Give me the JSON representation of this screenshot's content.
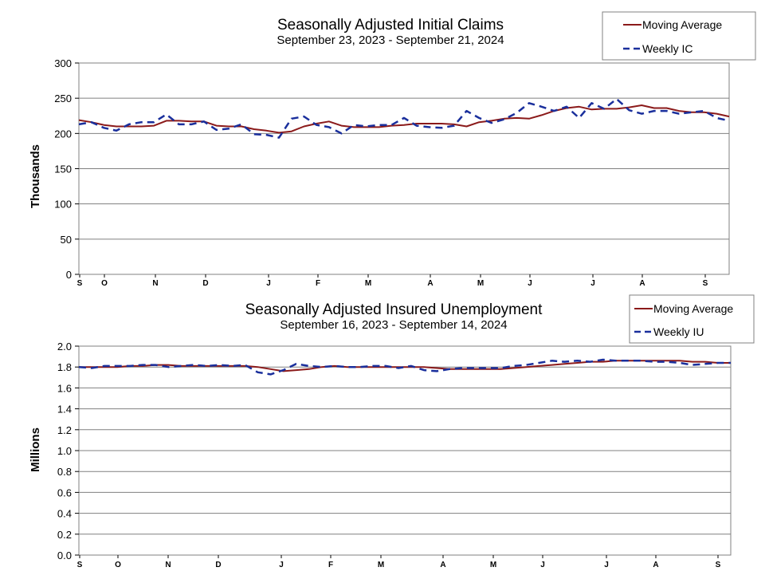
{
  "colors": {
    "moving_average": "#8b1a1a",
    "weekly": "#1a2f9c",
    "grid": "#808080"
  },
  "chart_data": [
    {
      "type": "line",
      "title": "Seasonally Adjusted Initial Claims",
      "subtitle": "September 23, 2023 - September 21, 2024",
      "ylabel": "Thousands",
      "ylim": [
        0,
        300
      ],
      "yticks": [
        "300",
        "250",
        "200",
        "150",
        "100",
        "50",
        "0"
      ],
      "xtick_labels": [
        "S",
        "O",
        "N",
        "D",
        "J",
        "F",
        "M",
        "A",
        "M",
        "J",
        "J",
        "A",
        "S"
      ],
      "legend_position": "top-right",
      "series": [
        {
          "name": "Moving Average",
          "values": [
            219,
            216,
            212,
            210,
            210,
            210,
            211,
            218,
            218,
            217,
            217,
            211,
            210,
            210,
            206,
            204,
            201,
            203,
            210,
            214,
            217,
            211,
            209,
            209,
            209,
            211,
            212,
            214,
            214,
            214,
            213,
            210,
            216,
            218,
            221,
            222,
            221,
            226,
            232,
            236,
            238,
            234,
            235,
            235,
            237,
            240,
            236,
            236,
            232,
            230,
            230,
            228,
            224
          ]
        },
        {
          "name": "Weekly IC",
          "values": [
            213,
            216,
            208,
            204,
            213,
            216,
            216,
            227,
            213,
            213,
            217,
            205,
            207,
            213,
            199,
            198,
            194,
            221,
            224,
            212,
            209,
            200,
            212,
            210,
            212,
            212,
            222,
            211,
            209,
            208,
            211,
            232,
            222,
            215,
            220,
            229,
            243,
            238,
            232,
            238,
            222,
            243,
            235,
            249,
            233,
            228,
            232,
            232,
            228,
            230,
            232,
            222,
            218
          ]
        }
      ]
    },
    {
      "type": "line",
      "title": "Seasonally Adjusted Insured Unemployment",
      "subtitle": "September 16, 2023 - September 14, 2024",
      "ylabel": "Millions",
      "ylim": [
        0,
        2
      ],
      "yticks": [
        "2.0",
        "1.8",
        "1.6",
        "1.4",
        "1.2",
        "1.0",
        "0.8",
        "0.6",
        "0.4",
        "0.2",
        "0.0"
      ],
      "xtick_labels": [
        "S",
        "O",
        "N",
        "D",
        "J",
        "F",
        "M",
        "A",
        "M",
        "J",
        "J",
        "A",
        "S"
      ],
      "legend_position": "top-right",
      "series": [
        {
          "name": "Moving Average",
          "values": [
            1.8,
            1.8,
            1.8,
            1.8,
            1.81,
            1.81,
            1.82,
            1.82,
            1.81,
            1.81,
            1.81,
            1.81,
            1.81,
            1.81,
            1.8,
            1.78,
            1.76,
            1.77,
            1.78,
            1.8,
            1.81,
            1.8,
            1.8,
            1.8,
            1.8,
            1.8,
            1.8,
            1.8,
            1.79,
            1.78,
            1.78,
            1.78,
            1.78,
            1.78,
            1.79,
            1.8,
            1.81,
            1.82,
            1.83,
            1.84,
            1.85,
            1.85,
            1.86,
            1.86,
            1.86,
            1.86,
            1.86,
            1.86,
            1.85,
            1.85,
            1.84,
            1.84
          ]
        },
        {
          "name": "Weekly IU",
          "values": [
            1.8,
            1.79,
            1.81,
            1.81,
            1.81,
            1.82,
            1.82,
            1.8,
            1.81,
            1.82,
            1.81,
            1.82,
            1.81,
            1.82,
            1.75,
            1.73,
            1.77,
            1.83,
            1.81,
            1.8,
            1.81,
            1.8,
            1.8,
            1.81,
            1.81,
            1.79,
            1.81,
            1.77,
            1.76,
            1.78,
            1.79,
            1.79,
            1.79,
            1.79,
            1.81,
            1.82,
            1.84,
            1.86,
            1.85,
            1.86,
            1.85,
            1.87,
            1.86,
            1.86,
            1.86,
            1.85,
            1.85,
            1.84,
            1.82,
            1.83,
            1.84,
            1.84
          ]
        }
      ]
    }
  ]
}
